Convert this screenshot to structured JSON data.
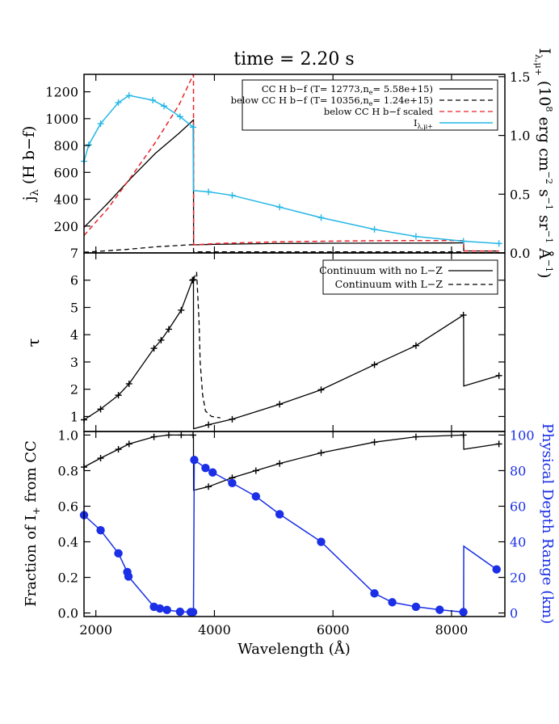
{
  "title": "time = 2.20 s",
  "colors": {
    "black": "#000000",
    "red": "#e8232a",
    "cyan": "#24b7e6",
    "blue": "#1a2fe6"
  },
  "xaxis": {
    "label": "Wavelength (Å)",
    "ticks": [
      "2000",
      "4000",
      "6000",
      "8000"
    ],
    "range": [
      1800,
      8900
    ]
  },
  "chart_data": [
    {
      "type": "line",
      "ylabel": "j_λ (H b−f)",
      "ylim": [
        0,
        1330
      ],
      "yticks": [
        "200",
        "400",
        "600",
        "800",
        "1000",
        "1200"
      ],
      "y2label": "I_λ,μ+ (10^8 erg cm^-2 s^-1 sr^-1 Å^-1)",
      "y2lim": [
        0,
        1.52
      ],
      "y2ticks": [
        "0.0",
        "0.5",
        "1.0",
        "1.5"
      ],
      "legend": {
        "placement": "top-right",
        "entries": [
          "CC H b−f (T= 12773,n_e=  5.58e+15)",
          "below CC H b−f (T= 10356,n_e=  1.24e+15)",
          "below CC H b−f scaled",
          "I_λ,μ+"
        ]
      },
      "series": [
        {
          "name": "CC H b−f (T= 12773,n_e=  5.58e+15)",
          "style": "solid",
          "color": "#000000",
          "x": [
            1800,
            2200,
            2600,
            3000,
            3400,
            3646,
            3648,
            4000,
            5000,
            6000,
            7000,
            8000,
            8204,
            8206,
            8800
          ],
          "y": [
            190,
            370,
            560,
            740,
            890,
            990,
            60,
            64,
            70,
            72,
            73,
            74,
            75,
            15,
            14
          ]
        },
        {
          "name": "below CC H b−f (T= 10356,n_e=  1.24e+15)",
          "style": "dashed",
          "color": "#000000",
          "x": [
            1800,
            2500,
            3000,
            3646,
            3648,
            5000,
            8204,
            8206,
            8800
          ],
          "y": [
            5,
            25,
            45,
            62,
            8,
            8,
            8,
            2,
            2
          ]
        },
        {
          "name": "below CC H b−f scaled",
          "style": "dashed",
          "color": "#e8232a",
          "x": [
            1800,
            2200,
            2600,
            3000,
            3400,
            3646,
            3650,
            4000,
            5000,
            6000,
            7000,
            8000,
            8204,
            8206,
            8800
          ],
          "y": [
            130,
            330,
            570,
            820,
            1100,
            1330,
            60,
            70,
            82,
            88,
            92,
            92,
            92,
            15,
            14
          ]
        },
        {
          "name": "I_λ,μ+",
          "style": "solid",
          "color": "#24b7e6",
          "axis": "right",
          "x": [
            1800,
            1880,
            2080,
            2380,
            2560,
            2960,
            3150,
            3420,
            3640,
            3646,
            3648,
            3900,
            4300,
            5100,
            5800,
            6700,
            7400,
            8200,
            8800
          ],
          "y": [
            0.78,
            0.92,
            1.1,
            1.28,
            1.34,
            1.3,
            1.25,
            1.16,
            1.07,
            0.53,
            0.53,
            0.52,
            0.49,
            0.39,
            0.3,
            0.2,
            0.14,
            0.1,
            0.08
          ]
        }
      ]
    },
    {
      "type": "line",
      "ylabel": "τ",
      "ylim": [
        0.45,
        7.0
      ],
      "yticks": [
        "1",
        "2",
        "3",
        "4",
        "5",
        "6",
        "7"
      ],
      "legend": {
        "placement": "top-right",
        "entries": [
          "Continuum with no L−Z",
          "Continuum with L−Z"
        ]
      },
      "series": [
        {
          "name": "Continuum with no L−Z",
          "style": "solid",
          "color": "#000000",
          "x": [
            1800,
            2080,
            2380,
            2560,
            2980,
            3100,
            3230,
            3440,
            3630,
            3646,
            3648,
            3900,
            4300,
            5100,
            5800,
            6700,
            7400,
            8200,
            8204,
            8206,
            8800
          ],
          "y": [
            0.88,
            1.27,
            1.78,
            2.2,
            3.5,
            3.8,
            4.2,
            4.9,
            6.0,
            6.02,
            0.55,
            0.7,
            0.9,
            1.45,
            1.98,
            2.9,
            3.6,
            4.72,
            4.72,
            2.12,
            2.5
          ]
        },
        {
          "name": "Continuum with L−Z",
          "style": "dashed",
          "color": "#000000",
          "x": [
            3646,
            3700,
            3740,
            3760,
            3800,
            3850,
            3950,
            4100
          ],
          "y": [
            6.02,
            6.3,
            4.5,
            3.0,
            1.8,
            1.2,
            1.0,
            0.95
          ]
        }
      ]
    },
    {
      "type": "line",
      "ylabel": "Fraction of I_+ from CC",
      "ylim": [
        -0.02,
        1.02
      ],
      "yticks": [
        "0.0",
        "0.2",
        "0.4",
        "0.6",
        "0.8",
        "1.0"
      ],
      "y2label": "Physical Depth Range (km)",
      "y2lim": [
        -2,
        102
      ],
      "y2ticks": [
        "0",
        "20",
        "40",
        "60",
        "80",
        "100"
      ],
      "series": [
        {
          "name": "",
          "style": "solid",
          "color": "#000000",
          "x": [
            1800,
            2080,
            2380,
            2560,
            2980,
            3230,
            3440,
            3640,
            3646,
            3648,
            3900,
            4300,
            4700,
            5100,
            5800,
            6700,
            7400,
            8200,
            8204,
            8206,
            8800
          ],
          "y": [
            0.82,
            0.87,
            0.92,
            0.95,
            0.99,
            1.0,
            1.0,
            1.0,
            1.0,
            0.69,
            0.71,
            0.76,
            0.8,
            0.84,
            0.9,
            0.96,
            0.99,
            1.0,
            1.0,
            0.92,
            0.95
          ]
        },
        {
          "name": "",
          "style": "solid-markers",
          "color": "#1a2fe6",
          "axis": "right",
          "x": [
            1800,
            2080,
            2380,
            2530,
            2550,
            2980,
            3080,
            3200,
            3420,
            3600,
            3640,
            3646,
            3660,
            3850,
            3970,
            4300,
            4700,
            5100,
            5800,
            6700,
            7000,
            7400,
            7800,
            8200,
            8204,
            8206,
            8760
          ],
          "y": [
            55,
            46.5,
            33.5,
            23,
            20.5,
            3.5,
            2.5,
            1.7,
            0.7,
            0.5,
            0.5,
            0.5,
            86,
            81.5,
            79,
            73,
            65.5,
            55.5,
            40,
            11,
            6,
            3.5,
            1.8,
            0.5,
            0.5,
            37.5,
            24.5
          ]
        }
      ]
    }
  ]
}
